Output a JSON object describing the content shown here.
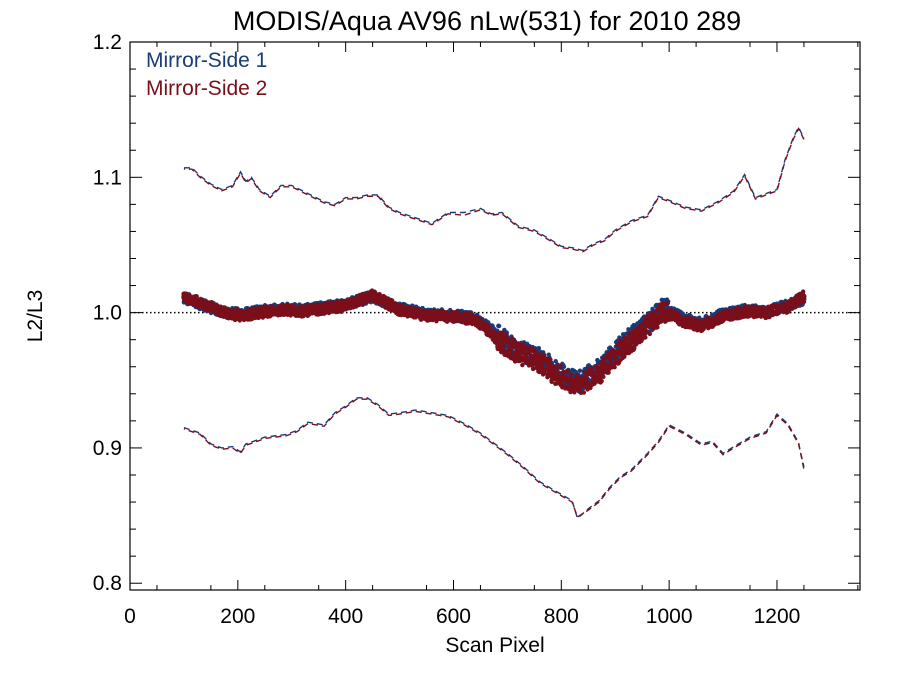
{
  "chart_data": {
    "type": "scatter",
    "title": "MODIS/Aqua AV96 nLw(531) for 2010 289",
    "xlabel": "Scan Pixel",
    "ylabel": "L2/L3",
    "xlim": [
      0,
      1354
    ],
    "ylim": [
      0.795,
      1.2
    ],
    "x_ticks": [
      0,
      200,
      400,
      600,
      800,
      1000,
      1200
    ],
    "x_tick_labels": [
      "0",
      "200",
      "400",
      "600",
      "800",
      "1000",
      "1200"
    ],
    "y_ticks": [
      0.8,
      0.9,
      1.0,
      1.1,
      1.2
    ],
    "y_tick_labels": [
      "0.8",
      "0.9",
      "1.0",
      "1.1",
      "1.2"
    ],
    "reference_line": 1.0,
    "grid": false,
    "legend_position": "top-left",
    "colors": {
      "ms1": "#1a3a78",
      "ms2": "#7a0f1a",
      "axis": "#000000"
    },
    "series": [
      {
        "name": "Mirror-Side 1",
        "color": "#1a3a78",
        "mean_points": {
          "x": [
            100,
            140,
            180,
            210,
            240,
            280,
            320,
            360,
            400,
            450,
            500,
            550,
            600,
            640,
            680,
            720,
            760,
            800,
            830,
            870,
            910,
            950,
            990,
            1030,
            1060,
            1100,
            1140,
            1180,
            1220,
            1250
          ],
          "y": [
            1.011,
            1.005,
            1.0,
            0.999,
            1.001,
            1.003,
            1.002,
            1.004,
            1.006,
            1.012,
            1.003,
            0.999,
            0.998,
            0.996,
            0.984,
            0.972,
            0.966,
            0.955,
            0.948,
            0.958,
            0.975,
            0.988,
            1.003,
            0.995,
            0.992,
            0.999,
            1.002,
            1.001,
            1.005,
            1.01
          ]
        },
        "upper_line": {
          "x": [
            100,
            115,
            130,
            150,
            170,
            190,
            205,
            215,
            225,
            240,
            260,
            280,
            300,
            330,
            360,
            380,
            400,
            420,
            440,
            460,
            480,
            500,
            530,
            560,
            590,
            620,
            650,
            670,
            690,
            720,
            750,
            780,
            800,
            820,
            840,
            860,
            880,
            900,
            930,
            960,
            980,
            1000,
            1030,
            1060,
            1090,
            1120,
            1140,
            1160,
            1180,
            1200,
            1215,
            1230,
            1240,
            1250
          ],
          "y": [
            1.107,
            1.107,
            1.101,
            1.095,
            1.091,
            1.094,
            1.104,
            1.097,
            1.1,
            1.091,
            1.086,
            1.094,
            1.094,
            1.088,
            1.082,
            1.08,
            1.085,
            1.085,
            1.087,
            1.087,
            1.078,
            1.074,
            1.07,
            1.066,
            1.074,
            1.074,
            1.077,
            1.073,
            1.074,
            1.064,
            1.061,
            1.054,
            1.049,
            1.048,
            1.046,
            1.051,
            1.054,
            1.061,
            1.068,
            1.072,
            1.086,
            1.083,
            1.078,
            1.076,
            1.082,
            1.09,
            1.102,
            1.085,
            1.088,
            1.091,
            1.113,
            1.129,
            1.137,
            1.129
          ]
        },
        "lower_line": {
          "x": [
            100,
            115,
            130,
            150,
            170,
            190,
            205,
            215,
            230,
            250,
            270,
            290,
            310,
            330,
            360,
            380,
            400,
            420,
            440,
            460,
            480,
            500,
            530,
            560,
            590,
            620,
            650,
            680,
            700,
            730,
            760,
            790,
            820,
            830,
            850,
            870,
            890,
            910,
            930,
            960,
            980,
            1000,
            1030,
            1060,
            1080,
            1100,
            1120,
            1150,
            1180,
            1200,
            1220,
            1240,
            1250
          ],
          "y": [
            0.915,
            0.913,
            0.911,
            0.903,
            0.9,
            0.901,
            0.897,
            0.903,
            0.905,
            0.908,
            0.909,
            0.91,
            0.913,
            0.919,
            0.917,
            0.926,
            0.931,
            0.937,
            0.937,
            0.932,
            0.925,
            0.926,
            0.928,
            0.926,
            0.924,
            0.918,
            0.911,
            0.902,
            0.896,
            0.886,
            0.875,
            0.868,
            0.861,
            0.848,
            0.855,
            0.861,
            0.871,
            0.879,
            0.884,
            0.896,
            0.905,
            0.917,
            0.911,
            0.903,
            0.905,
            0.896,
            0.901,
            0.908,
            0.912,
            0.925,
            0.918,
            0.904,
            0.884
          ]
        }
      },
      {
        "name": "Mirror-Side 2",
        "color": "#7a0f1a",
        "mean_points": {
          "x": [
            100,
            140,
            180,
            210,
            240,
            280,
            320,
            360,
            400,
            450,
            500,
            550,
            600,
            640,
            680,
            720,
            760,
            800,
            830,
            870,
            910,
            950,
            990,
            1030,
            1060,
            1100,
            1140,
            1180,
            1220,
            1250
          ],
          "y": [
            1.012,
            1.006,
            0.999,
            0.998,
            1.0,
            1.002,
            1.001,
            1.003,
            1.005,
            1.013,
            1.002,
            0.998,
            0.997,
            0.995,
            0.981,
            0.97,
            0.963,
            0.952,
            0.946,
            0.955,
            0.972,
            0.986,
            1.001,
            0.993,
            0.99,
            0.997,
            1.001,
            1.0,
            1.004,
            1.012
          ]
        },
        "upper_line": {
          "x": [
            100,
            115,
            130,
            150,
            170,
            190,
            205,
            215,
            225,
            240,
            260,
            280,
            300,
            330,
            360,
            380,
            400,
            420,
            440,
            460,
            480,
            500,
            530,
            560,
            590,
            620,
            650,
            670,
            690,
            720,
            750,
            780,
            800,
            820,
            840,
            860,
            880,
            900,
            930,
            960,
            980,
            1000,
            1030,
            1060,
            1090,
            1120,
            1140,
            1160,
            1180,
            1200,
            1215,
            1230,
            1240,
            1250
          ],
          "y": [
            1.106,
            1.106,
            1.1,
            1.094,
            1.09,
            1.093,
            1.103,
            1.096,
            1.099,
            1.09,
            1.085,
            1.093,
            1.093,
            1.087,
            1.081,
            1.079,
            1.084,
            1.084,
            1.086,
            1.086,
            1.077,
            1.073,
            1.069,
            1.065,
            1.073,
            1.072,
            1.076,
            1.072,
            1.073,
            1.063,
            1.06,
            1.053,
            1.048,
            1.047,
            1.045,
            1.05,
            1.053,
            1.06,
            1.067,
            1.071,
            1.085,
            1.082,
            1.077,
            1.075,
            1.081,
            1.089,
            1.101,
            1.084,
            1.087,
            1.09,
            1.112,
            1.128,
            1.136,
            1.128
          ]
        },
        "lower_line": {
          "x": [
            100,
            115,
            130,
            150,
            170,
            190,
            205,
            215,
            230,
            250,
            270,
            290,
            310,
            330,
            360,
            380,
            400,
            420,
            440,
            460,
            480,
            500,
            530,
            560,
            590,
            620,
            650,
            680,
            700,
            730,
            760,
            790,
            820,
            830,
            850,
            870,
            890,
            910,
            930,
            960,
            980,
            1000,
            1030,
            1060,
            1080,
            1100,
            1120,
            1150,
            1180,
            1200,
            1220,
            1240,
            1250
          ],
          "y": [
            0.914,
            0.912,
            0.91,
            0.902,
            0.899,
            0.9,
            0.896,
            0.902,
            0.904,
            0.907,
            0.908,
            0.909,
            0.912,
            0.918,
            0.916,
            0.925,
            0.93,
            0.936,
            0.936,
            0.931,
            0.924,
            0.925,
            0.927,
            0.925,
            0.923,
            0.917,
            0.91,
            0.901,
            0.895,
            0.885,
            0.874,
            0.867,
            0.86,
            0.849,
            0.854,
            0.86,
            0.87,
            0.878,
            0.883,
            0.895,
            0.904,
            0.916,
            0.91,
            0.902,
            0.904,
            0.895,
            0.9,
            0.907,
            0.911,
            0.924,
            0.917,
            0.903,
            0.886
          ]
        }
      }
    ]
  }
}
